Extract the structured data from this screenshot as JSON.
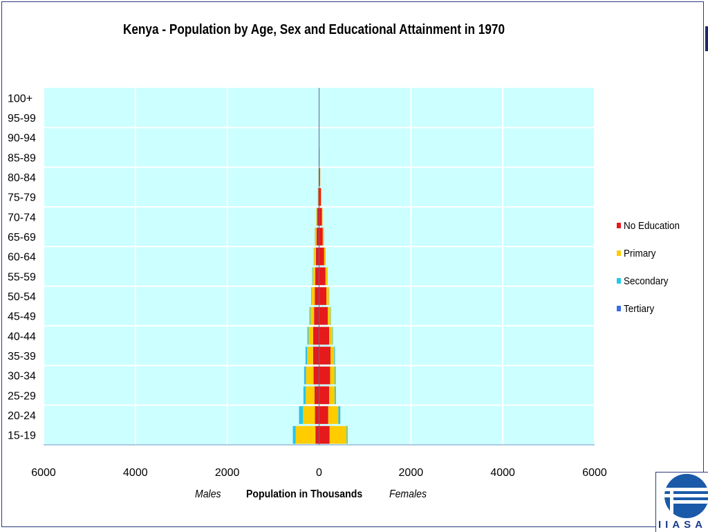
{
  "chart_data": {
    "type": "bar",
    "subtype": "population-pyramid",
    "title": "Kenya - Population by Age, Sex and Educational  Attainment  in 1970",
    "xlabel": "Population in Thousands",
    "left_label": "Males",
    "right_label": "Females",
    "xlim": [
      -6000,
      6000
    ],
    "x_ticks": [
      -6000,
      -4000,
      -2000,
      0,
      2000,
      4000,
      6000
    ],
    "x_tick_labels": [
      "6000",
      "4000",
      "2000",
      "0",
      "2000",
      "4000",
      "6000"
    ],
    "grid": true,
    "legend_position": "right",
    "categories": [
      "100+",
      "95-99",
      "90-94",
      "85-89",
      "80-84",
      "75-79",
      "70-74",
      "65-69",
      "60-64",
      "55-59",
      "50-54",
      "45-49",
      "40-44",
      "35-39",
      "30-34",
      "25-29",
      "20-24",
      "15-19"
    ],
    "series": [
      {
        "name": "No Education",
        "color": "#e41a1c",
        "males": [
          2,
          3,
          4,
          6,
          10,
          18,
          40,
          55,
          70,
          85,
          95,
          110,
          130,
          130,
          120,
          100,
          90,
          80
        ],
        "females": [
          3,
          4,
          6,
          10,
          20,
          40,
          60,
          80,
          110,
          140,
          160,
          190,
          220,
          250,
          240,
          220,
          200,
          230
        ]
      },
      {
        "name": "Primary",
        "color": "#ffcc00",
        "males": [
          0,
          0,
          1,
          2,
          4,
          10,
          20,
          35,
          40,
          55,
          65,
          80,
          100,
          130,
          165,
          190,
          260,
          430
        ],
        "females": [
          0,
          0,
          1,
          2,
          5,
          10,
          15,
          25,
          30,
          40,
          55,
          60,
          70,
          80,
          100,
          120,
          220,
          370
        ]
      },
      {
        "name": "Secondary",
        "color": "#22c8e8",
        "males": [
          0,
          0,
          0,
          0,
          0,
          1,
          2,
          3,
          5,
          8,
          10,
          15,
          20,
          30,
          35,
          45,
          80,
          60
        ],
        "females": [
          0,
          0,
          0,
          0,
          0,
          0,
          1,
          2,
          3,
          4,
          5,
          6,
          10,
          15,
          20,
          25,
          40,
          20
        ]
      },
      {
        "name": "Tertiary",
        "color": "#3a6ee8",
        "males": [
          0,
          0,
          0,
          0,
          0,
          0,
          1,
          1,
          1,
          2,
          2,
          3,
          3,
          5,
          5,
          5,
          5,
          2
        ],
        "females": [
          0,
          0,
          0,
          0,
          0,
          0,
          0,
          0,
          1,
          1,
          1,
          1,
          1,
          2,
          2,
          2,
          2,
          1
        ]
      }
    ]
  },
  "logo": {
    "text": "IIASA"
  }
}
